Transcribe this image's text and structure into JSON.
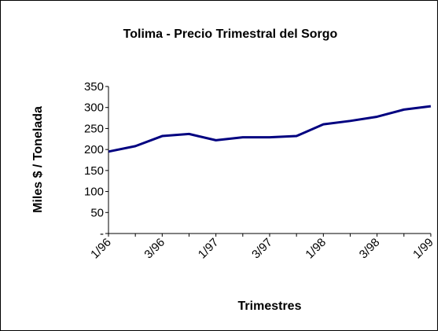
{
  "chart_data": {
    "type": "line",
    "title": "Tolima - Precio Trimestral del Sorgo",
    "x_label": "Trimestres",
    "y_label": "Miles $ / Tonelada",
    "categories": [
      "1/96",
      null,
      "3/96",
      null,
      "1/97",
      null,
      "3/97",
      null,
      "1/98",
      null,
      "3/98",
      null,
      "1/99"
    ],
    "series": [
      {
        "name": "Precio",
        "color": "#000080",
        "values": [
          195,
          208,
          232,
          237,
          222,
          229,
          229,
          232,
          260,
          268,
          278,
          295,
          303
        ]
      }
    ],
    "ylim": [
      0,
      350
    ],
    "yticks": [
      {
        "value": 0,
        "label": "-"
      },
      50,
      100,
      150,
      200,
      250,
      300,
      350
    ]
  }
}
